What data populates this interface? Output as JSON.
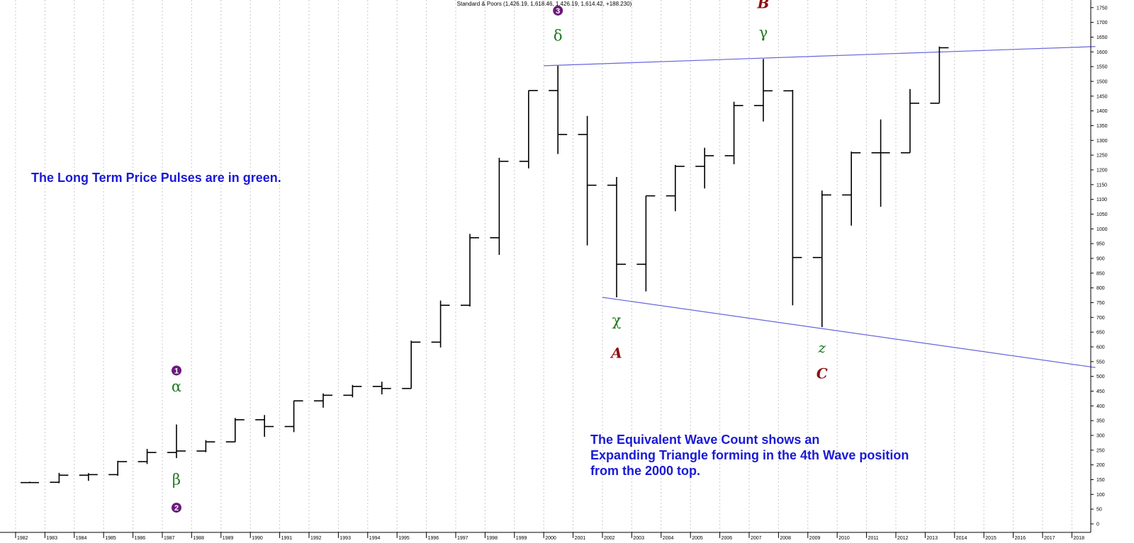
{
  "chart_data": {
    "type": "ohlc",
    "header": "Standard & Poors (1,426.19, 1,618.46, 1,426.19, 1,614.42, +188.230)",
    "period": "yearly",
    "x": [
      "1982",
      "1983",
      "1984",
      "1985",
      "1986",
      "1987",
      "1988",
      "1989",
      "1990",
      "1991",
      "1992",
      "1993",
      "1994",
      "1995",
      "1996",
      "1997",
      "1998",
      "1999",
      "2000",
      "2001",
      "2002",
      "2003",
      "2004",
      "2005",
      "2006",
      "2007",
      "2008",
      "2009",
      "2010",
      "2011",
      "2012",
      "2013",
      "2014",
      "2015",
      "2016",
      "2017",
      "2018"
    ],
    "y_ticks": [
      0,
      50,
      100,
      150,
      200,
      250,
      300,
      350,
      400,
      450,
      500,
      550,
      600,
      650,
      700,
      750,
      800,
      850,
      900,
      950,
      1000,
      1050,
      1100,
      1150,
      1200,
      1250,
      1300,
      1350,
      1400,
      1450,
      1500,
      1550,
      1600,
      1650,
      1700,
      1750
    ],
    "ylim": [
      0,
      1775
    ],
    "ohlc": [
      {
        "x": "1982",
        "open": 140,
        "high": 143,
        "low": 138,
        "close": 140
      },
      {
        "x": "1983",
        "open": 141,
        "high": 173,
        "low": 138,
        "close": 165
      },
      {
        "x": "1984",
        "open": 165,
        "high": 172,
        "low": 146,
        "close": 167
      },
      {
        "x": "1985",
        "open": 167,
        "high": 214,
        "low": 163,
        "close": 211
      },
      {
        "x": "1986",
        "open": 211,
        "high": 254,
        "low": 203,
        "close": 242
      },
      {
        "x": "1987",
        "open": 242,
        "high": 337,
        "low": 223,
        "close": 247
      },
      {
        "x": "1988",
        "open": 247,
        "high": 284,
        "low": 243,
        "close": 278
      },
      {
        "x": "1989",
        "open": 278,
        "high": 359,
        "low": 277,
        "close": 353
      },
      {
        "x": "1990",
        "open": 353,
        "high": 369,
        "low": 295,
        "close": 330
      },
      {
        "x": "1991",
        "open": 330,
        "high": 418,
        "low": 311,
        "close": 417
      },
      {
        "x": "1992",
        "open": 417,
        "high": 442,
        "low": 394,
        "close": 436
      },
      {
        "x": "1993",
        "open": 436,
        "high": 471,
        "low": 429,
        "close": 466
      },
      {
        "x": "1994",
        "open": 466,
        "high": 482,
        "low": 439,
        "close": 459
      },
      {
        "x": "1995",
        "open": 459,
        "high": 621,
        "low": 459,
        "close": 616
      },
      {
        "x": "1996",
        "open": 616,
        "high": 757,
        "low": 598,
        "close": 741
      },
      {
        "x": "1997",
        "open": 741,
        "high": 983,
        "low": 737,
        "close": 970
      },
      {
        "x": "1998",
        "open": 970,
        "high": 1241,
        "low": 912,
        "close": 1229
      },
      {
        "x": "1999",
        "open": 1229,
        "high": 1469,
        "low": 1205,
        "close": 1469
      },
      {
        "x": "2000",
        "open": 1469,
        "high": 1553,
        "low": 1254,
        "close": 1320
      },
      {
        "x": "2001",
        "open": 1320,
        "high": 1383,
        "low": 944,
        "close": 1148
      },
      {
        "x": "2002",
        "open": 1148,
        "high": 1176,
        "low": 768,
        "close": 880
      },
      {
        "x": "2003",
        "open": 880,
        "high": 1112,
        "low": 788,
        "close": 1112
      },
      {
        "x": "2004",
        "open": 1112,
        "high": 1217,
        "low": 1060,
        "close": 1212
      },
      {
        "x": "2005",
        "open": 1212,
        "high": 1275,
        "low": 1137,
        "close": 1248
      },
      {
        "x": "2006",
        "open": 1248,
        "high": 1431,
        "low": 1219,
        "close": 1418
      },
      {
        "x": "2007",
        "open": 1418,
        "high": 1576,
        "low": 1364,
        "close": 1468
      },
      {
        "x": "2008",
        "open": 1468,
        "high": 1471,
        "low": 741,
        "close": 903
      },
      {
        "x": "2009",
        "open": 903,
        "high": 1130,
        "low": 667,
        "close": 1115
      },
      {
        "x": "2010",
        "open": 1115,
        "high": 1262,
        "low": 1011,
        "close": 1258
      },
      {
        "x": "2011",
        "open": 1258,
        "high": 1371,
        "low": 1075,
        "close": 1258
      },
      {
        "x": "2012",
        "open": 1258,
        "high": 1474,
        "low": 1258,
        "close": 1426
      },
      {
        "x": "2013",
        "open": 1426,
        "high": 1618,
        "low": 1426,
        "close": 1614
      }
    ],
    "trendlines": [
      {
        "color": "#6666dd",
        "from": {
          "x": "2000",
          "y": 1553
        },
        "to": {
          "x": "2018.8",
          "y": 1618
        }
      },
      {
        "color": "#6666dd",
        "from": {
          "x": "2002",
          "y": 768
        },
        "to": {
          "x": "2018.8",
          "y": 530
        }
      }
    ],
    "annotations": [
      {
        "kind": "circle",
        "text": "1",
        "x": "1987",
        "y": 520,
        "color": "#6a1b7a"
      },
      {
        "kind": "greek",
        "text": "α",
        "x": "1987",
        "y": 465
      },
      {
        "kind": "greek",
        "text": "β",
        "x": "1987",
        "y": 150
      },
      {
        "kind": "circle",
        "text": "2",
        "x": "1987",
        "y": 55,
        "color": "#6a1b7a"
      },
      {
        "kind": "circle",
        "text": "3",
        "x": "2000",
        "y": 1740,
        "color": "#6a1b7a"
      },
      {
        "kind": "greek",
        "text": "δ",
        "x": "2000",
        "y": 1655
      },
      {
        "kind": "abc",
        "text": "B",
        "x": "2007",
        "y": 1765
      },
      {
        "kind": "greek",
        "text": "γ",
        "x": "2007",
        "y": 1665
      },
      {
        "kind": "greek",
        "text": "χ",
        "x": "2002",
        "y": 690
      },
      {
        "kind": "abc",
        "text": "A",
        "x": "2002",
        "y": 580
      },
      {
        "kind": "z",
        "text": "z",
        "x": "2009",
        "y": 595
      },
      {
        "kind": "abc",
        "text": "C",
        "x": "2009",
        "y": 510
      }
    ]
  },
  "notes": {
    "pulses": "The Long Term Price Pulses are in green.",
    "wave_line1": "The Equivalent Wave Count shows an",
    "wave_line2": "Expanding Triangle forming in the 4th Wave position",
    "wave_line3": "from the 2000 top."
  },
  "colors": {
    "bars": "#000000",
    "trendline": "#6666dd",
    "pulse_green": "#1f7a1f",
    "abc_red": "#8b1010",
    "circle_purple": "#6a1b7a",
    "note_blue": "#1a1ad6",
    "grid": "#c8c8c8"
  }
}
